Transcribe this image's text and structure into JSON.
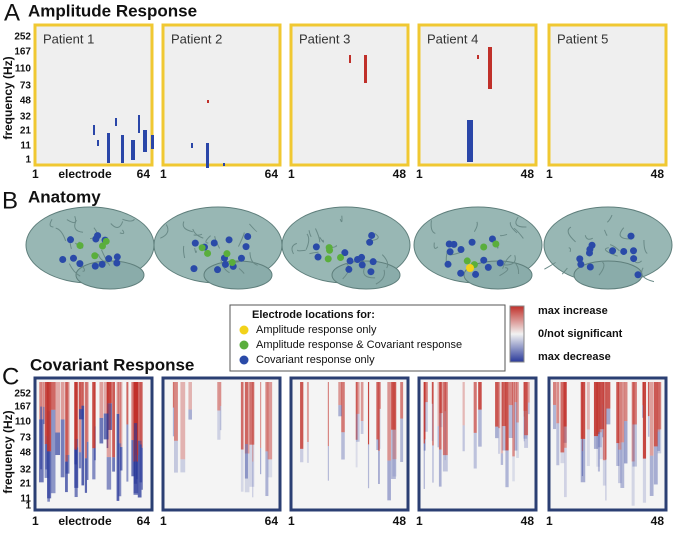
{
  "panels": [
    {
      "letter": "A",
      "title": "Amplitude Response"
    },
    {
      "letter": "B",
      "title": "Anatomy"
    },
    {
      "letter": "C",
      "title": "Covariant Response"
    }
  ],
  "y_axis": {
    "label": "frequency (Hz)",
    "ticks": [
      "252",
      "167",
      "110",
      "73",
      "48",
      "32",
      "21",
      "11",
      "1"
    ]
  },
  "patients": [
    "Patient 1",
    "Patient 2",
    "Patient 3",
    "Patient 4",
    "Patient 5"
  ],
  "x_axes": [
    {
      "start": "1",
      "label": "electrode",
      "end": "64"
    },
    {
      "start": "1",
      "end": "64"
    },
    {
      "start": "1",
      "end": "48"
    },
    {
      "start": "1",
      "end": "48"
    },
    {
      "start": "1",
      "end": "48"
    }
  ],
  "legend": {
    "title": "Electrode locations for:",
    "items": [
      "Amplitude response only",
      "Amplitude response & Covariant response",
      "Covariant response only"
    ]
  },
  "colorbar": {
    "labels": [
      "max increase",
      "0/not significant",
      "max decrease"
    ]
  }
}
